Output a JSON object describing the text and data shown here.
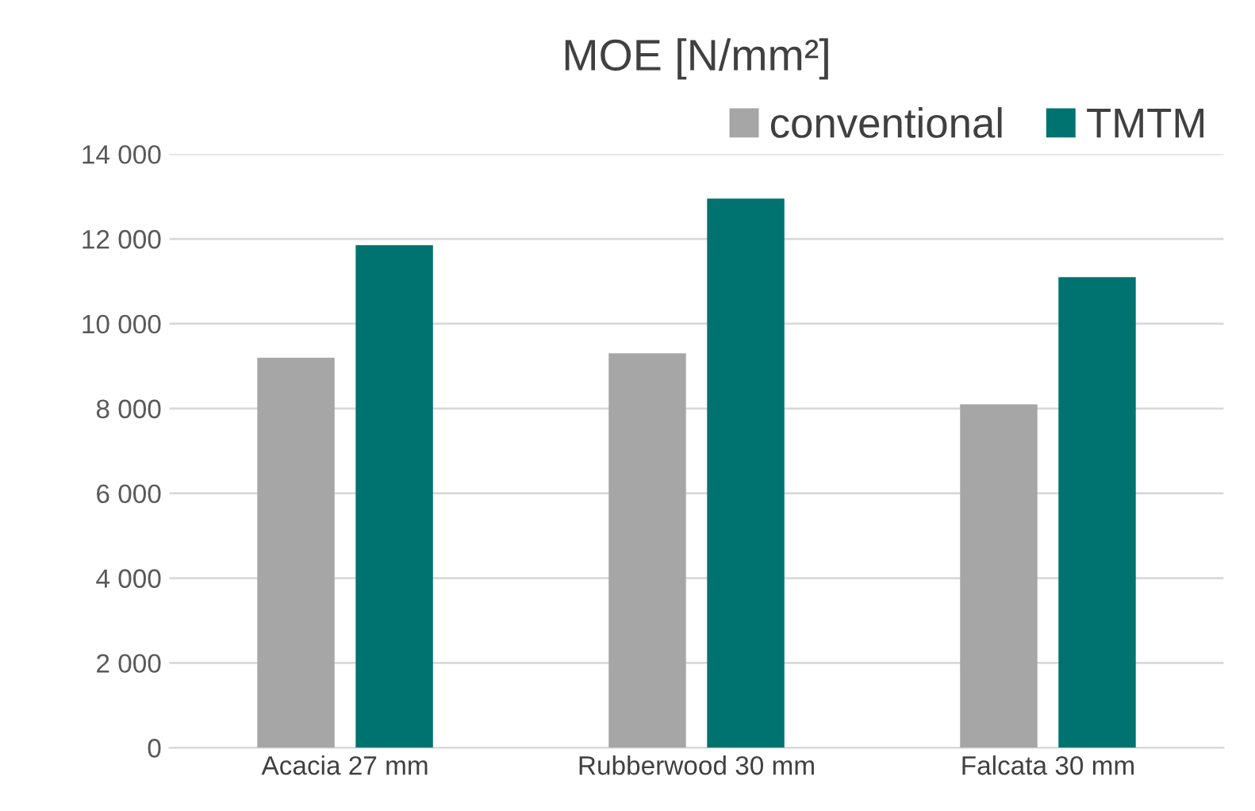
{
  "chart_data": {
    "type": "bar",
    "title": "MOE [N/mm²]",
    "categories": [
      "Acacia 27 mm",
      "Rubberwood 30 mm",
      "Falcata 30 mm"
    ],
    "series": [
      {
        "name": "conventional",
        "color": "#a6a6a6",
        "values": [
          9200,
          9300,
          8100
        ]
      },
      {
        "name": "TMTM",
        "color": "#007370",
        "values": [
          11850,
          12950,
          11100
        ]
      }
    ],
    "ylim": [
      0,
      14000
    ],
    "yticks": [
      0,
      {
        "value": 2000,
        "label": "2 000"
      },
      {
        "value": 4000,
        "label": "4 000"
      },
      {
        "value": 6000,
        "label": "6 000"
      },
      {
        "value": 8000,
        "label": "8 000"
      },
      {
        "value": 10000,
        "label": "10 000"
      },
      {
        "value": 12000,
        "label": "12 000"
      },
      {
        "value": 14000,
        "label": "14 000"
      }
    ],
    "grid": "y",
    "legend": "top right"
  }
}
